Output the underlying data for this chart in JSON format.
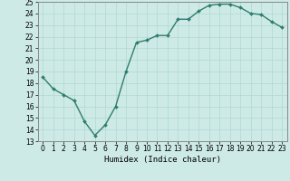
{
  "x": [
    0,
    1,
    2,
    3,
    4,
    5,
    6,
    7,
    8,
    9,
    10,
    11,
    12,
    13,
    14,
    15,
    16,
    17,
    18,
    19,
    20,
    21,
    22,
    23
  ],
  "y": [
    18.5,
    17.5,
    17.0,
    16.5,
    14.7,
    13.5,
    14.4,
    16.0,
    19.0,
    21.5,
    21.7,
    22.1,
    22.1,
    23.5,
    23.5,
    24.2,
    24.7,
    24.8,
    24.8,
    24.5,
    24.0,
    23.9,
    23.3,
    22.8
  ],
  "line_color": "#2e7d6e",
  "marker": "D",
  "marker_size": 2.0,
  "bg_color": "#cdeae6",
  "grid_color": "#b0d8d2",
  "xlabel": "Humidex (Indice chaleur)",
  "xlim": [
    -0.5,
    23.5
  ],
  "ylim": [
    13,
    25
  ],
  "yticks": [
    13,
    14,
    15,
    16,
    17,
    18,
    19,
    20,
    21,
    22,
    23,
    24,
    25
  ],
  "xticks": [
    0,
    1,
    2,
    3,
    4,
    5,
    6,
    7,
    8,
    9,
    10,
    11,
    12,
    13,
    14,
    15,
    16,
    17,
    18,
    19,
    20,
    21,
    22,
    23
  ],
  "tick_fontsize": 5.5,
  "xlabel_fontsize": 6.5,
  "linewidth": 1.0
}
